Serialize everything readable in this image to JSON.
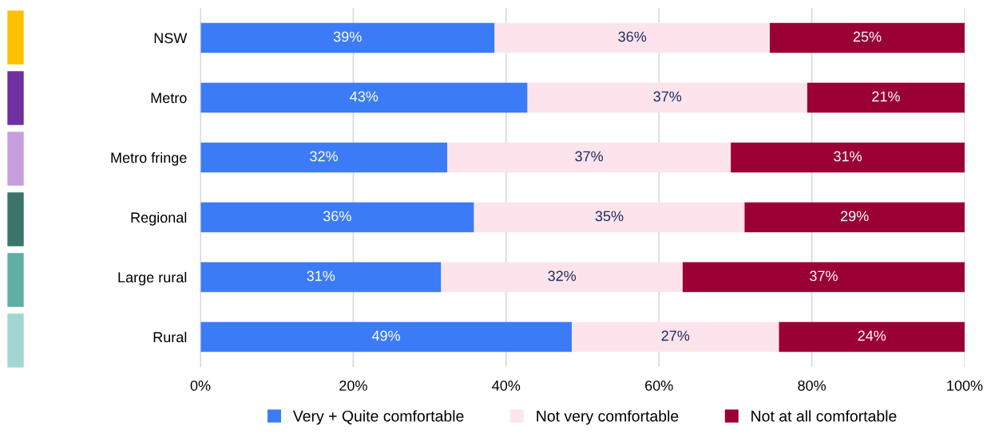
{
  "chart_data": {
    "type": "bar",
    "orientation": "horizontal",
    "stacked": true,
    "categories": [
      "NSW",
      "Metro",
      "Metro fringe",
      "Regional",
      "Large rural",
      "Rural"
    ],
    "series": [
      {
        "name": "Very + Quite comfortable",
        "color": "#3b7cf6",
        "values": [
          38.5,
          42.8,
          32.3,
          35.8,
          31.5,
          48.6
        ],
        "value_labels": [
          "39%",
          "43%",
          "32%",
          "36%",
          "31%",
          "49%"
        ]
      },
      {
        "name": "Not very comfortable",
        "color": "#fde4ec",
        "values": [
          36.0,
          36.6,
          37.1,
          35.4,
          31.6,
          27.1
        ],
        "value_labels": [
          "36%",
          "37%",
          "37%",
          "35%",
          "32%",
          "27%"
        ]
      },
      {
        "name": "Not at all comfortable",
        "color": "#9b0035",
        "values": [
          25.5,
          20.6,
          30.6,
          28.8,
          36.9,
          24.3
        ],
        "value_labels": [
          "25%",
          "21%",
          "31%",
          "29%",
          "37%",
          "24%"
        ]
      }
    ],
    "xlim": [
      0,
      100
    ],
    "xticks": [
      {
        "value": 0,
        "label": "0%"
      },
      {
        "value": 20,
        "label": "20%"
      },
      {
        "value": 40,
        "label": "40%"
      },
      {
        "value": 60,
        "label": "60%"
      },
      {
        "value": 80,
        "label": "80%"
      },
      {
        "value": 100,
        "label": "100%"
      }
    ],
    "grid": "x",
    "legend": "bottom"
  }
}
